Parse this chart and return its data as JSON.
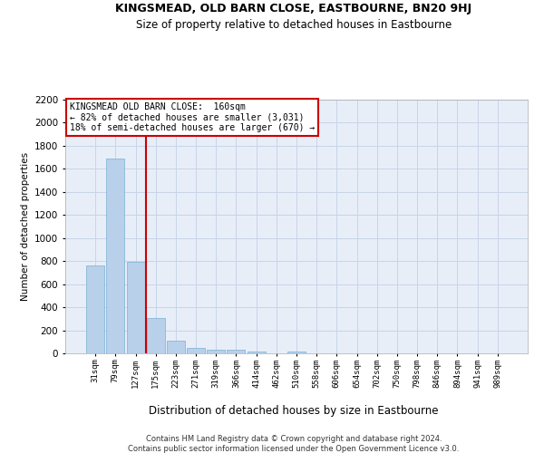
{
  "title": "KINGSMEAD, OLD BARN CLOSE, EASTBOURNE, BN20 9HJ",
  "subtitle": "Size of property relative to detached houses in Eastbourne",
  "xlabel": "Distribution of detached houses by size in Eastbourne",
  "ylabel": "Number of detached properties",
  "bar_color": "#b8d0ea",
  "bar_edge_color": "#7aafd4",
  "grid_color": "#c8d4e8",
  "background_color": "#e8eef8",
  "bins": [
    "31sqm",
    "79sqm",
    "127sqm",
    "175sqm",
    "223sqm",
    "271sqm",
    "319sqm",
    "366sqm",
    "414sqm",
    "462sqm",
    "510sqm",
    "558sqm",
    "606sqm",
    "654sqm",
    "702sqm",
    "750sqm",
    "798sqm",
    "846sqm",
    "894sqm",
    "941sqm",
    "989sqm"
  ],
  "values": [
    760,
    1690,
    790,
    305,
    113,
    45,
    35,
    30,
    18,
    0,
    18,
    0,
    0,
    0,
    0,
    0,
    0,
    0,
    0,
    0,
    0
  ],
  "vline_x_index": 2.5,
  "vline_color": "#cc0000",
  "annotation_text": "KINGSMEAD OLD BARN CLOSE:  160sqm\n← 82% of detached houses are smaller (3,031)\n18% of semi-detached houses are larger (670) →",
  "annotation_box_color": "#ffffff",
  "annotation_box_edge": "#cc0000",
  "ylim": [
    0,
    2200
  ],
  "yticks": [
    0,
    200,
    400,
    600,
    800,
    1000,
    1200,
    1400,
    1600,
    1800,
    2000,
    2200
  ],
  "footnote_line1": "Contains HM Land Registry data © Crown copyright and database right 2024.",
  "footnote_line2": "Contains public sector information licensed under the Open Government Licence v3.0.",
  "fig_width": 6.0,
  "fig_height": 5.0,
  "dpi": 100
}
